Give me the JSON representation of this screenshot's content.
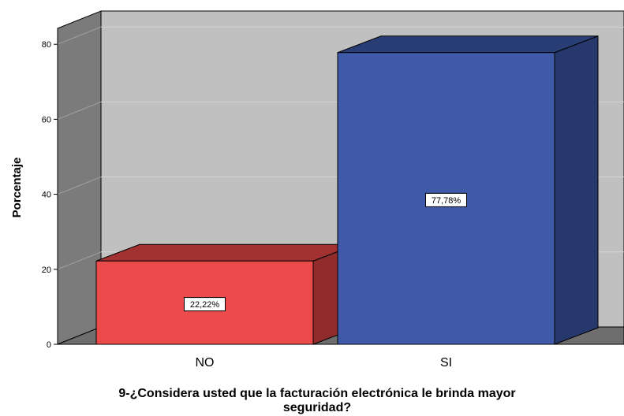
{
  "chart_data": {
    "type": "bar",
    "categories": [
      "NO",
      "SI"
    ],
    "values": [
      22.22,
      77.78
    ],
    "data_labels": [
      "22,22%",
      "77,78%"
    ],
    "ylabel": "Porcentaje",
    "xlabel_lines": [
      "9-¿Considera usted que la facturación electrónica le brinda mayor",
      "seguridad?"
    ],
    "ylim": [
      0,
      80
    ],
    "yticks": [
      0,
      20,
      40,
      60,
      80
    ],
    "grid": true,
    "three_d": true,
    "colors": {
      "NO": {
        "front": "#EB4B4B",
        "top": "#A23232",
        "side": "#912C2C"
      },
      "SI": {
        "front": "#3F5AA8",
        "top": "#2A3E76",
        "side": "#27386C"
      },
      "back_wall": "#C0C0C0",
      "side_wall": "#7B7B7B",
      "floor": "#6E6E6E",
      "grid": "#D4D4D4"
    }
  }
}
